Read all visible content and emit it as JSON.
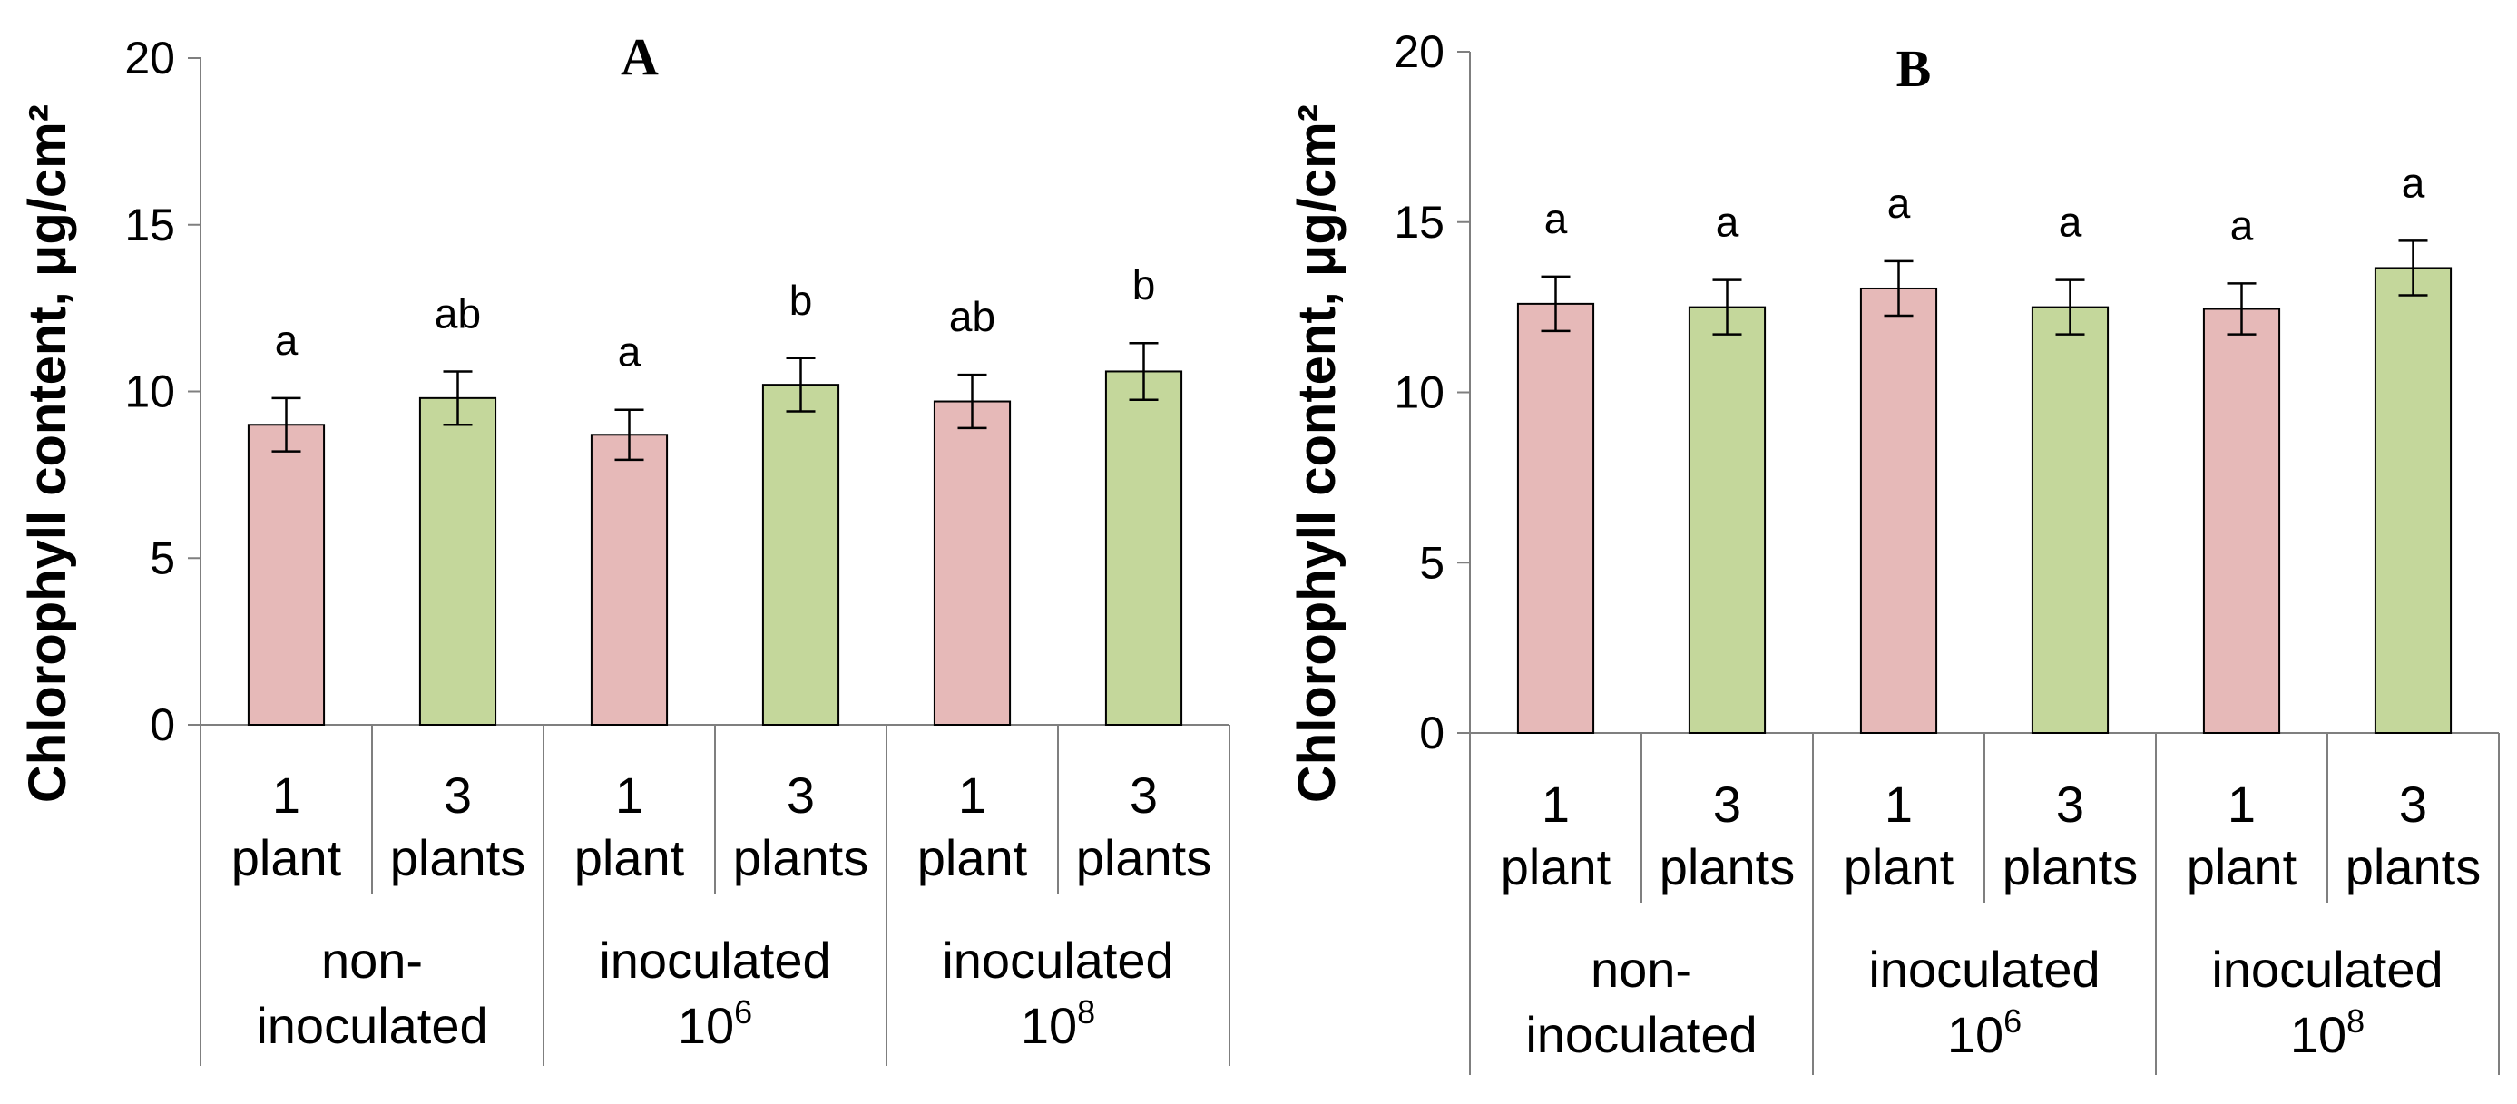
{
  "chart_data": [
    {
      "type": "bar",
      "title": "A",
      "ylabel": "Chlorophyll content, μg/cm²",
      "ylim": [
        0,
        20
      ],
      "yticks": [
        0,
        5,
        10,
        15,
        20
      ],
      "colors": {
        "1 plant": "#e6b9b8",
        "3 plants": "#c4d79b"
      },
      "groups": [
        {
          "label_line1": "non-",
          "label_line2": "inoculated",
          "label_sup": ""
        },
        {
          "label_line1": "inoculated",
          "label_line2": "10",
          "label_sup": "6"
        },
        {
          "label_line1": "inoculated",
          "label_line2": "10",
          "label_sup": "8"
        }
      ],
      "categories": [
        {
          "line1": "1",
          "line2": "plant"
        },
        {
          "line1": "3",
          "line2": "plants"
        }
      ],
      "bars": [
        {
          "group": 0,
          "category": 0,
          "value": 9.0,
          "error": 0.8,
          "sig": "a"
        },
        {
          "group": 0,
          "category": 1,
          "value": 9.8,
          "error": 0.8,
          "sig": "ab"
        },
        {
          "group": 1,
          "category": 0,
          "value": 8.7,
          "error": 0.75,
          "sig": "a"
        },
        {
          "group": 1,
          "category": 1,
          "value": 10.2,
          "error": 0.8,
          "sig": "b"
        },
        {
          "group": 2,
          "category": 0,
          "value": 9.7,
          "error": 0.8,
          "sig": "ab"
        },
        {
          "group": 2,
          "category": 1,
          "value": 10.6,
          "error": 0.85,
          "sig": "b"
        }
      ]
    },
    {
      "type": "bar",
      "title": "B",
      "ylabel": "Chlorophyll content, μg/cm²",
      "ylim": [
        0,
        20
      ],
      "yticks": [
        0,
        5,
        10,
        15,
        20
      ],
      "colors": {
        "1 plant": "#e6b9b8",
        "3 plants": "#c4d79b"
      },
      "groups": [
        {
          "label_line1": "non-",
          "label_line2": "inoculated",
          "label_sup": ""
        },
        {
          "label_line1": "inoculated",
          "label_line2": "10",
          "label_sup": "6"
        },
        {
          "label_line1": "inoculated",
          "label_line2": "10",
          "label_sup": "8"
        }
      ],
      "categories": [
        {
          "line1": "1",
          "line2": "plant"
        },
        {
          "line1": "3",
          "line2": "plants"
        }
      ],
      "bars": [
        {
          "group": 0,
          "category": 0,
          "value": 12.6,
          "error": 0.8,
          "sig": "a"
        },
        {
          "group": 0,
          "category": 1,
          "value": 12.5,
          "error": 0.8,
          "sig": "a"
        },
        {
          "group": 1,
          "category": 0,
          "value": 13.05,
          "error": 0.8,
          "sig": "a"
        },
        {
          "group": 1,
          "category": 1,
          "value": 12.5,
          "error": 0.8,
          "sig": "a"
        },
        {
          "group": 2,
          "category": 0,
          "value": 12.45,
          "error": 0.75,
          "sig": "a"
        },
        {
          "group": 2,
          "category": 1,
          "value": 13.65,
          "error": 0.8,
          "sig": "a"
        }
      ]
    }
  ]
}
